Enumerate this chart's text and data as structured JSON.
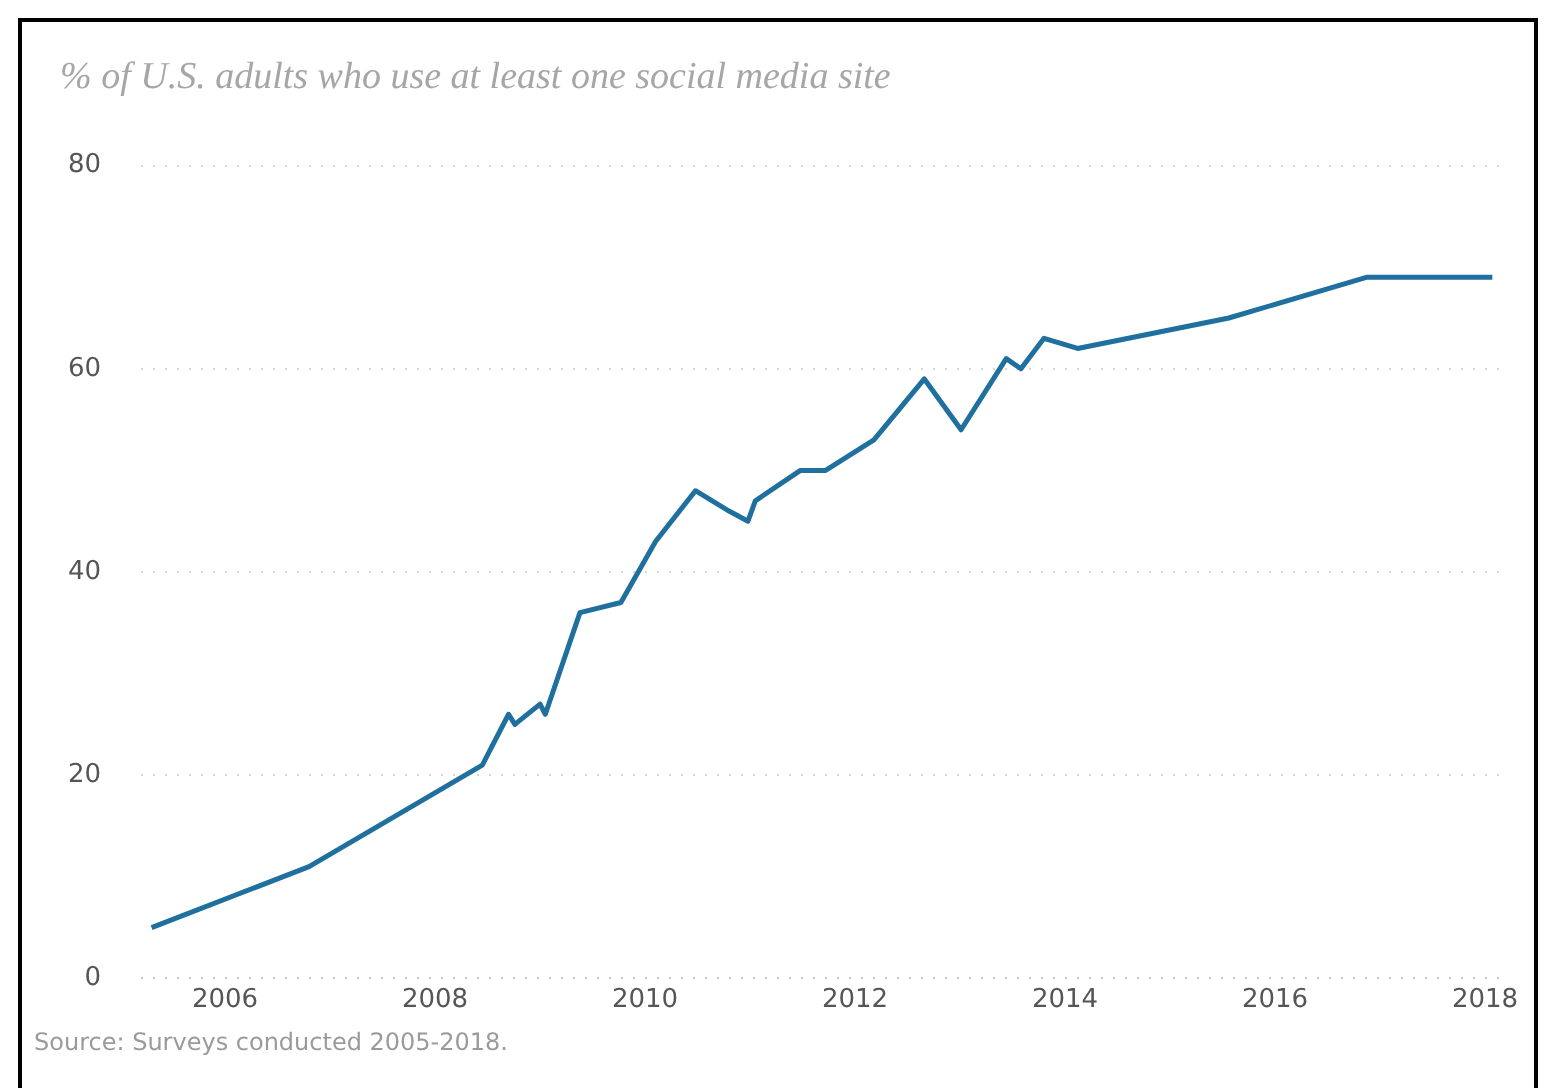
{
  "chart_data": {
    "type": "line",
    "title": "% of U.S. adults who use at least one social media site",
    "x": [
      2005.3,
      2006.8,
      2008.45,
      2008.7,
      2008.76,
      2009.0,
      2009.05,
      2009.38,
      2009.77,
      2010.1,
      2010.48,
      2010.8,
      2010.98,
      2011.05,
      2011.48,
      2011.72,
      2012.18,
      2012.66,
      2013.01,
      2013.44,
      2013.58,
      2013.8,
      2014.12,
      2015.56,
      2016.87,
      2018.07
    ],
    "series": [
      {
        "color": "#1f6f9f",
        "values": [
          5,
          11,
          21,
          26,
          25,
          27,
          26,
          36,
          37,
          43,
          48,
          46,
          45,
          47,
          50,
          50,
          53,
          59,
          54,
          61,
          60,
          63,
          62,
          65,
          69,
          69
        ]
      }
    ],
    "xlim": [
      2005.2,
      2018.2
    ],
    "xticks": [
      2006,
      2008,
      2010,
      2012,
      2014,
      2016,
      2018
    ],
    "ylim": [
      0,
      80
    ],
    "yticks": [
      0,
      20,
      40,
      60,
      80
    ],
    "grid": "y",
    "legend": false,
    "marker": "none",
    "line_style": "solid",
    "annotations": [
      "Source: Surveys conducted 2005-2018."
    ]
  }
}
